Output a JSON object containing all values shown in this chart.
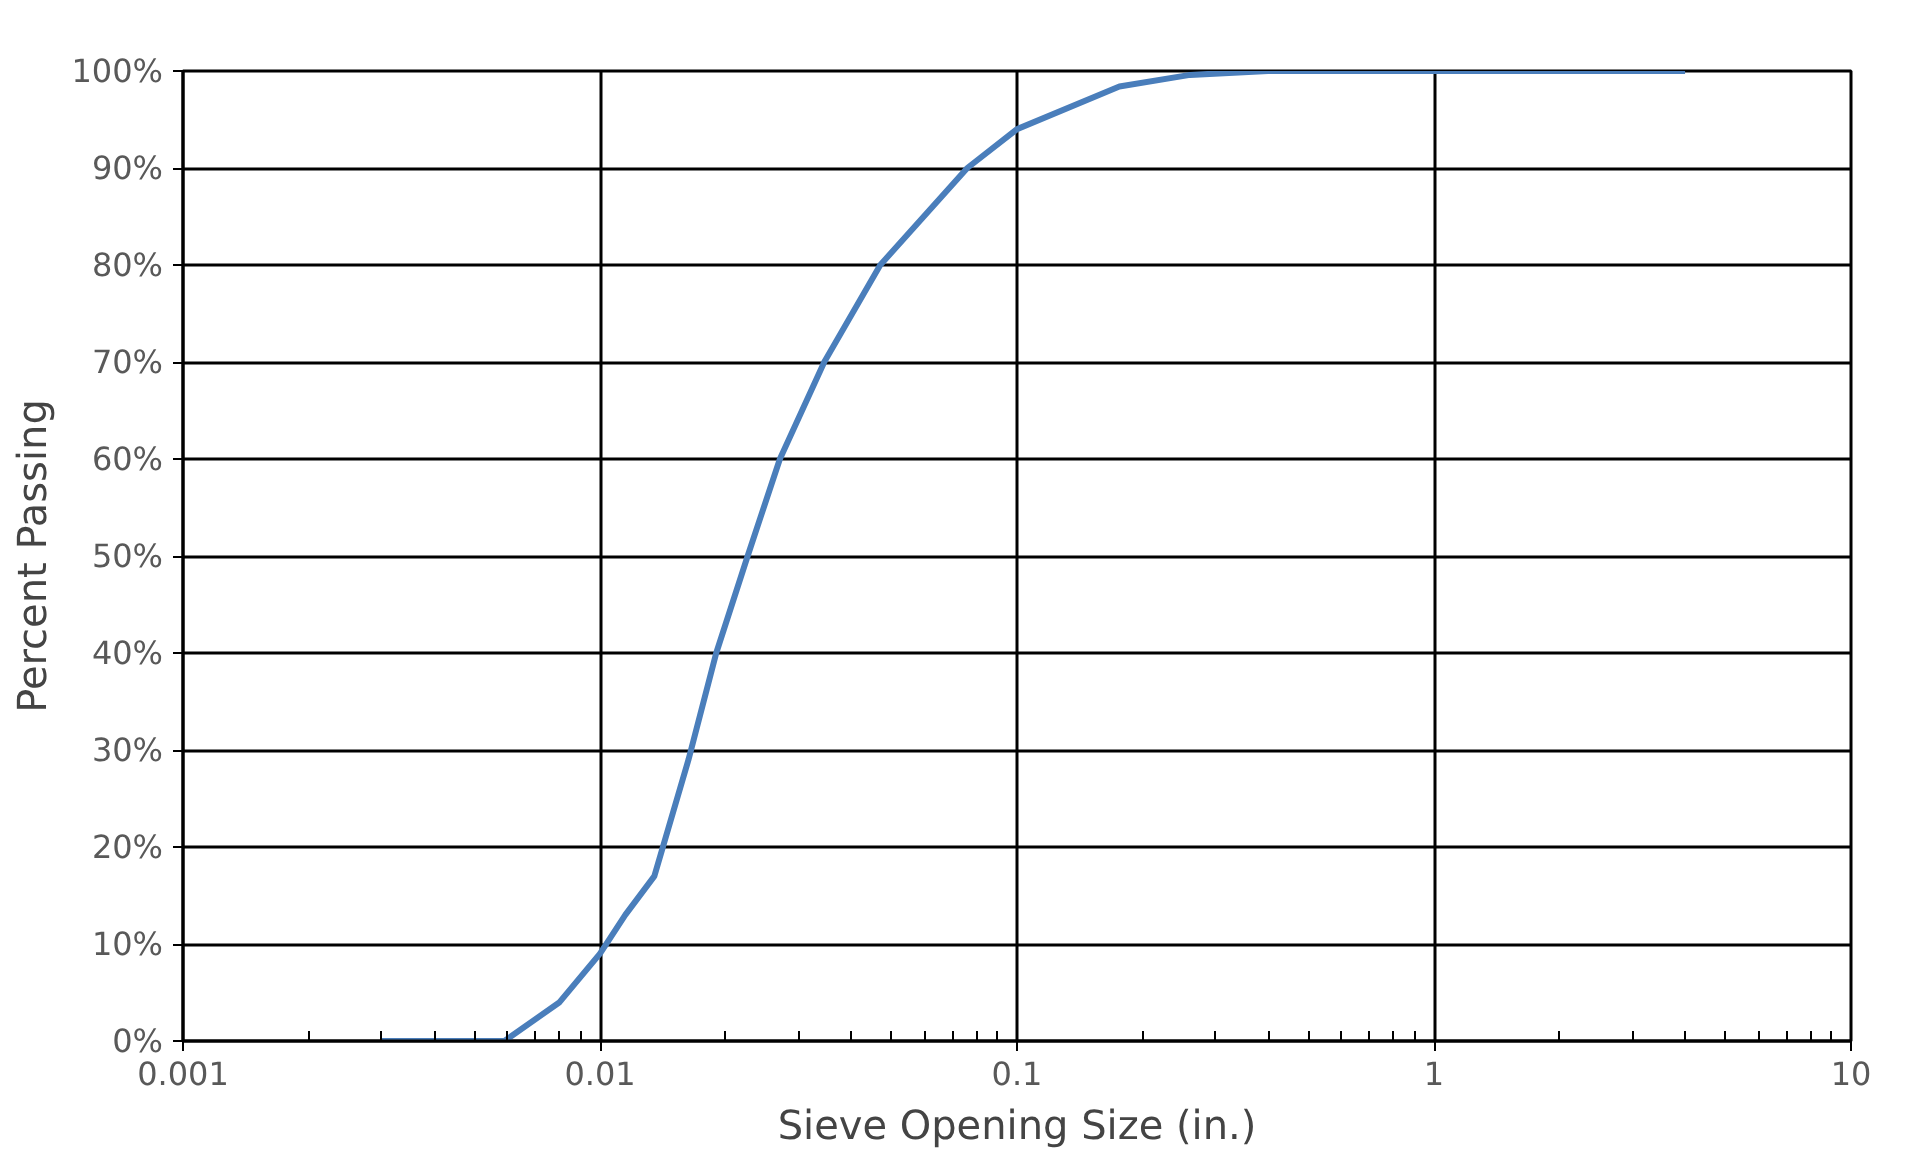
{
  "chart_data": {
    "type": "line",
    "xlabel": "Sieve Opening Size (in.)",
    "ylabel": "Percent Passing",
    "log": "x",
    "grid": true,
    "marker": "none",
    "line_style": "solid",
    "xlim": [
      0.001,
      10
    ],
    "ylim": [
      0,
      100
    ],
    "xticks": [
      0.001,
      {
        "value": 0.002,
        "label": null
      },
      {
        "value": 0.003,
        "label": null
      },
      {
        "value": 0.004,
        "label": null
      },
      {
        "value": 0.005,
        "label": null
      },
      {
        "value": 0.006,
        "label": null
      },
      {
        "value": 0.007,
        "label": null
      },
      {
        "value": 0.008,
        "label": null
      },
      {
        "value": 0.009,
        "label": null
      },
      0.01,
      {
        "value": 0.02,
        "label": null
      },
      {
        "value": 0.03,
        "label": null
      },
      {
        "value": 0.04,
        "label": null
      },
      {
        "value": 0.05,
        "label": null
      },
      {
        "value": 0.06,
        "label": null
      },
      {
        "value": 0.07,
        "label": null
      },
      {
        "value": 0.08,
        "label": null
      },
      {
        "value": 0.09,
        "label": null
      },
      0.1,
      {
        "value": 0.2,
        "label": null
      },
      {
        "value": 0.3,
        "label": null
      },
      {
        "value": 0.4,
        "label": null
      },
      {
        "value": 0.5,
        "label": null
      },
      {
        "value": 0.6,
        "label": null
      },
      {
        "value": 0.7,
        "label": null
      },
      {
        "value": 0.8,
        "label": null
      },
      {
        "value": 0.9,
        "label": null
      },
      1,
      {
        "value": 2,
        "label": null
      },
      {
        "value": 3,
        "label": null
      },
      {
        "value": 4,
        "label": null
      },
      {
        "value": 5,
        "label": null
      },
      {
        "value": 6,
        "label": null
      },
      {
        "value": 7,
        "label": null
      },
      {
        "value": 8,
        "label": null
      },
      {
        "value": 9,
        "label": null
      },
      10
    ],
    "yticks": [
      {
        "value": 0,
        "label": "0%"
      },
      {
        "value": 10,
        "label": "10%"
      },
      {
        "value": 20,
        "label": "20%"
      },
      {
        "value": 30,
        "label": "30%"
      },
      {
        "value": 40,
        "label": "40%"
      },
      {
        "value": 50,
        "label": "50%"
      },
      {
        "value": 60,
        "label": "60%"
      },
      {
        "value": 70,
        "label": "70%"
      },
      {
        "value": 80,
        "label": "80%"
      },
      {
        "value": 90,
        "label": "90%"
      },
      {
        "value": 100,
        "label": "100%"
      }
    ],
    "series": [
      {
        "color": "#4a7ebb",
        "x": [
          0.003,
          0.0045,
          0.0059,
          0.008,
          0.01,
          0.0115,
          0.0135,
          0.0163,
          0.019,
          0.0226,
          0.027,
          0.0345,
          0.047,
          0.076,
          0.1,
          0.176,
          0.26,
          0.4,
          4
        ],
        "values": [
          0,
          0,
          0,
          4,
          9,
          13,
          17,
          29,
          40,
          50,
          60,
          70,
          80,
          90,
          94,
          98.4,
          99.6,
          100,
          100
        ]
      }
    ]
  }
}
